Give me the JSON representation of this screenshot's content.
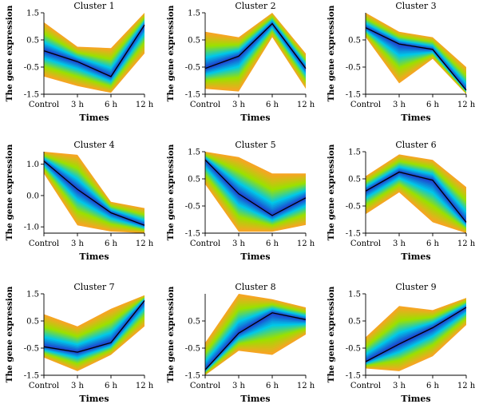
{
  "figure": {
    "axis_title_x": "Times",
    "axis_title_y": "The gene expression"
  },
  "colors": {
    "center_line": "#000000",
    "band_outer": "#f5a623",
    "band_mid": "#9be000",
    "band_inner": "#00c8e8",
    "band_core": "#2233cc"
  },
  "chart_data": [
    {
      "type": "line",
      "title": "Cluster 1",
      "categories": [
        "Control",
        "3 h",
        "6 h",
        "12 h"
      ],
      "ylim": [
        -1.5,
        1.5
      ],
      "yticks": [
        1.5,
        0.5,
        -0.5,
        -1.5
      ],
      "ytick_labels": [
        "1.5",
        "0.5",
        "-0.5",
        "-1.5"
      ],
      "centroid": [
        0.1,
        -0.3,
        -0.85,
        1.05
      ],
      "upper": [
        1.15,
        0.25,
        0.2,
        1.5
      ],
      "lower": [
        -0.85,
        -1.2,
        -1.45,
        0.0
      ]
    },
    {
      "type": "line",
      "title": "Cluster 2",
      "categories": [
        "Control",
        "3 h",
        "6 h",
        "12 h"
      ],
      "ylim": [
        -1.5,
        1.5
      ],
      "yticks": [
        1.5,
        0.5,
        -0.5,
        -1.5
      ],
      "ytick_labels": [
        "1.5",
        "0.5",
        "-0.5",
        "-1.5"
      ],
      "centroid": [
        -0.55,
        -0.1,
        1.1,
        -0.55
      ],
      "upper": [
        0.8,
        0.6,
        1.5,
        0.0
      ],
      "lower": [
        -1.3,
        -1.4,
        0.6,
        -1.3
      ]
    },
    {
      "type": "line",
      "title": "Cluster 3",
      "categories": [
        "Control",
        "3 h",
        "6 h",
        "12 h"
      ],
      "ylim": [
        -1.5,
        1.5
      ],
      "yticks": [
        0.5,
        -0.5,
        -1.5
      ],
      "ytick_labels": [
        "0.5",
        "-0.5",
        "-1.5"
      ],
      "centroid": [
        0.95,
        0.35,
        0.15,
        -1.35
      ],
      "upper": [
        1.5,
        0.8,
        0.6,
        -0.5
      ],
      "lower": [
        0.6,
        -1.1,
        -0.2,
        -1.5
      ]
    },
    {
      "type": "line",
      "title": "Cluster 4",
      "categories": [
        "Control",
        "3 h",
        "6 h",
        "12 h"
      ],
      "ylim": [
        -1.2,
        1.4
      ],
      "yticks": [
        1.0,
        0.0,
        -1.0
      ],
      "ytick_labels": [
        "1.0",
        "0.0",
        "-1.0"
      ],
      "centroid": [
        1.1,
        0.2,
        -0.55,
        -0.95
      ],
      "upper": [
        1.4,
        1.3,
        -0.2,
        -0.4
      ],
      "lower": [
        0.7,
        -0.95,
        -1.15,
        -1.2
      ]
    },
    {
      "type": "line",
      "title": "Cluster 5",
      "categories": [
        "Control",
        "3 h",
        "6 h",
        "12 h"
      ],
      "ylim": [
        -1.5,
        1.5
      ],
      "yticks": [
        1.5,
        0.5,
        -0.5,
        -1.5
      ],
      "ytick_labels": [
        "1.5",
        "0.5",
        "-0.5",
        "-1.5"
      ],
      "centroid": [
        1.2,
        -0.05,
        -0.85,
        -0.2
      ],
      "upper": [
        1.5,
        1.3,
        0.7,
        0.7
      ],
      "lower": [
        0.3,
        -1.45,
        -1.45,
        -1.2
      ]
    },
    {
      "type": "line",
      "title": "Cluster 6",
      "categories": [
        "Control",
        "3 h",
        "6 h",
        "12 h"
      ],
      "ylim": [
        -1.5,
        1.5
      ],
      "yticks": [
        1.5,
        0.5,
        -0.5,
        -1.5
      ],
      "ytick_labels": [
        "1.5",
        "0.5",
        "-0.5",
        "-1.5"
      ],
      "centroid": [
        0.05,
        0.75,
        0.45,
        -1.1
      ],
      "upper": [
        0.6,
        1.4,
        1.2,
        0.2
      ],
      "lower": [
        -0.8,
        0.0,
        -1.1,
        -1.5
      ]
    },
    {
      "type": "line",
      "title": "Cluster 7",
      "categories": [
        "Control",
        "3 h",
        "6 h",
        "12 h"
      ],
      "ylim": [
        -1.5,
        1.5
      ],
      "yticks": [
        1.5,
        0.5,
        -0.5,
        -1.5
      ],
      "ytick_labels": [
        "1.5",
        "0.5",
        "-0.5",
        "-1.5"
      ],
      "centroid": [
        -0.45,
        -0.65,
        -0.3,
        1.25
      ],
      "upper": [
        0.75,
        0.3,
        0.95,
        1.45
      ],
      "lower": [
        -0.85,
        -1.35,
        -0.75,
        0.3
      ]
    },
    {
      "type": "line",
      "title": "Cluster 8",
      "categories": [
        "Control",
        "3 h",
        "6 h",
        "12 h"
      ],
      "ylim": [
        -1.5,
        1.5
      ],
      "yticks": [
        0.5,
        -0.5,
        -1.5
      ],
      "ytick_labels": [
        "0.5",
        "-0.5",
        "-1.5"
      ],
      "centroid": [
        -1.3,
        0.05,
        0.8,
        0.55
      ],
      "upper": [
        -0.3,
        1.5,
        1.3,
        1.0
      ],
      "lower": [
        -1.5,
        -0.6,
        -0.75,
        0.0
      ]
    },
    {
      "type": "line",
      "title": "Cluster 9",
      "categories": [
        "Control",
        "3 h",
        "6 h",
        "12 h"
      ],
      "ylim": [
        -1.5,
        1.5
      ],
      "yticks": [
        1.5,
        0.5,
        -0.5,
        -1.5
      ],
      "ytick_labels": [
        "1.5",
        "0.5",
        "-0.5",
        "-1.5"
      ],
      "centroid": [
        -1.0,
        -0.35,
        0.25,
        1.0
      ],
      "upper": [
        -0.1,
        1.05,
        0.9,
        1.35
      ],
      "lower": [
        -1.25,
        -1.35,
        -0.8,
        0.35
      ]
    }
  ]
}
